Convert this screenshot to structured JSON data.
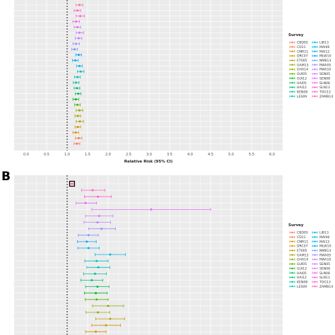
{
  "panel_labels": [
    "B"
  ],
  "legend": {
    "title": "Survey",
    "entries": [
      {
        "label": "CBD05",
        "color": "#F8766D"
      },
      {
        "label": "CD11",
        "color": "#EE8043"
      },
      {
        "label": "CMR11",
        "color": "#E08B00"
      },
      {
        "label": "DRC07",
        "color": "#CF9400"
      },
      {
        "label": "ET005",
        "color": "#BB9D00"
      },
      {
        "label": "GAM13",
        "color": "#A3A500"
      },
      {
        "label": "GHA14",
        "color": "#85AD00"
      },
      {
        "label": "GUI05",
        "color": "#5BB300"
      },
      {
        "label": "GUI12",
        "color": "#00B81F"
      },
      {
        "label": "HAI05",
        "color": "#00BC56"
      },
      {
        "label": "HAI12",
        "color": "#00BF7D"
      },
      {
        "label": "KEN08",
        "color": "#00C19C"
      },
      {
        "label": "LES09",
        "color": "#00C0B8"
      },
      {
        "label": "LIB13",
        "color": "#00BDD0"
      },
      {
        "label": "MAI06",
        "color": "#00B8E5"
      },
      {
        "label": "MAI12",
        "color": "#00B0F6"
      },
      {
        "label": "MLW10",
        "color": "#00A5FF"
      },
      {
        "label": "NMB13",
        "color": "#7997FF"
      },
      {
        "label": "RWA05",
        "color": "#9F8CFF"
      },
      {
        "label": "RWA10",
        "color": "#BB81FF"
      },
      {
        "label": "SEN05",
        "color": "#D078FF"
      },
      {
        "label": "SEN08",
        "color": "#E26EF7"
      },
      {
        "label": "SLN08",
        "color": "#EF67EA"
      },
      {
        "label": "SLN13",
        "color": "#F962D7"
      },
      {
        "label": "TOG13",
        "color": "#FF61C3"
      },
      {
        "label": "ZAMB14",
        "color": "#FF67AA"
      }
    ]
  },
  "chart_data": [
    {
      "type": "scatter",
      "subtype": "forest-plot",
      "xlabel": "Relative Risk (95% CI)",
      "ylabel": "",
      "xlim": [
        0,
        6
      ],
      "x_ticks": [
        "0.0",
        "0.5",
        "1.0",
        "1.5",
        "2.0",
        "2.5",
        "3.0",
        "3.5",
        "4.0",
        "4.5",
        "5.0",
        "5.5",
        "6.0"
      ],
      "reference_line": 1.0,
      "grid": true,
      "legend_position": "right",
      "series": [
        {
          "survey": "ZAMB14",
          "estimate": 1.3,
          "lower": 1.22,
          "upper": 1.38
        },
        {
          "survey": "TOG13",
          "estimate": 1.25,
          "lower": 1.17,
          "upper": 1.33
        },
        {
          "survey": "SLN13",
          "estimate": 1.32,
          "lower": 1.22,
          "upper": 1.42
        },
        {
          "survey": "SLN08",
          "estimate": 1.22,
          "lower": 1.14,
          "upper": 1.3
        },
        {
          "survey": "SEN08",
          "estimate": 1.25,
          "lower": 1.17,
          "upper": 1.33
        },
        {
          "survey": "SEN05",
          "estimate": 1.3,
          "lower": 1.22,
          "upper": 1.4
        },
        {
          "survey": "RWA10",
          "estimate": 1.28,
          "lower": 1.2,
          "upper": 1.36
        },
        {
          "survey": "RWA05",
          "estimate": 1.22,
          "lower": 1.14,
          "upper": 1.3
        },
        {
          "survey": "NMB13",
          "estimate": 1.18,
          "lower": 1.11,
          "upper": 1.25
        },
        {
          "survey": "MLW10",
          "estimate": 1.28,
          "lower": 1.21,
          "upper": 1.35
        },
        {
          "survey": "MAI12",
          "estimate": 1.2,
          "lower": 1.13,
          "upper": 1.27
        },
        {
          "survey": "MAI06",
          "estimate": 1.3,
          "lower": 1.23,
          "upper": 1.37
        },
        {
          "survey": "LIB13",
          "estimate": 1.33,
          "lower": 1.25,
          "upper": 1.41
        },
        {
          "survey": "LES09",
          "estimate": 1.25,
          "lower": 1.18,
          "upper": 1.32
        },
        {
          "survey": "KEN08",
          "estimate": 1.22,
          "lower": 1.15,
          "upper": 1.29
        },
        {
          "survey": "HAI12",
          "estimate": 1.24,
          "lower": 1.17,
          "upper": 1.31
        },
        {
          "survey": "HAI05",
          "estimate": 1.27,
          "lower": 1.2,
          "upper": 1.34
        },
        {
          "survey": "GUI12",
          "estimate": 1.21,
          "lower": 1.14,
          "upper": 1.28
        },
        {
          "survey": "GUI05",
          "estimate": 1.25,
          "lower": 1.18,
          "upper": 1.32
        },
        {
          "survey": "GHA14",
          "estimate": 1.3,
          "lower": 1.22,
          "upper": 1.38
        },
        {
          "survey": "GAM13",
          "estimate": 1.26,
          "lower": 1.19,
          "upper": 1.33
        },
        {
          "survey": "ET005",
          "estimate": 1.31,
          "lower": 1.22,
          "upper": 1.4
        },
        {
          "survey": "DRC07",
          "estimate": 1.26,
          "lower": 1.19,
          "upper": 1.33
        },
        {
          "survey": "CMR11",
          "estimate": 1.21,
          "lower": 1.14,
          "upper": 1.28
        },
        {
          "survey": "CD11",
          "estimate": 1.28,
          "lower": 1.2,
          "upper": 1.36
        },
        {
          "survey": "CBD05",
          "estimate": 1.24,
          "lower": 1.17,
          "upper": 1.31
        }
      ]
    },
    {
      "type": "scatter",
      "subtype": "forest-plot",
      "xlim": [
        0,
        6
      ],
      "reference_line": 1.0,
      "grid": true,
      "legend_position": "right",
      "series": [
        {
          "survey": "ZAMB14",
          "estimate": 1.12,
          "lower": 1.07,
          "upper": 1.17
        },
        {
          "survey": "TOG13",
          "estimate": 1.62,
          "lower": 1.35,
          "upper": 1.92
        },
        {
          "survey": "SLN13",
          "estimate": 1.75,
          "lower": 1.42,
          "upper": 2.08
        },
        {
          "survey": "SLN08",
          "estimate": 1.45,
          "lower": 1.22,
          "upper": 1.72
        },
        {
          "survey": "SEN08",
          "estimate": 3.05,
          "lower": 1.6,
          "upper": 4.5
        },
        {
          "survey": "SEN05",
          "estimate": 1.78,
          "lower": 1.45,
          "upper": 2.12
        },
        {
          "survey": "RWA10",
          "estimate": 1.74,
          "lower": 1.41,
          "upper": 2.06
        },
        {
          "survey": "RWA05",
          "estimate": 1.84,
          "lower": 1.52,
          "upper": 2.18
        },
        {
          "survey": "NMB13",
          "estimate": 1.52,
          "lower": 1.27,
          "upper": 1.76
        },
        {
          "survey": "MLW10",
          "estimate": 1.48,
          "lower": 1.25,
          "upper": 1.71
        },
        {
          "survey": "MAI12",
          "estimate": 1.52,
          "lower": 1.26,
          "upper": 1.78
        },
        {
          "survey": "MAI06",
          "estimate": 2.05,
          "lower": 1.68,
          "upper": 2.42
        },
        {
          "survey": "LIB13",
          "estimate": 1.72,
          "lower": 1.43,
          "upper": 2.0
        },
        {
          "survey": "LES09",
          "estimate": 1.76,
          "lower": 1.48,
          "upper": 2.04
        },
        {
          "survey": "KEN08",
          "estimate": 1.68,
          "lower": 1.4,
          "upper": 1.96
        },
        {
          "survey": "HAI12",
          "estimate": 1.6,
          "lower": 1.33,
          "upper": 1.87
        },
        {
          "survey": "HAI05",
          "estimate": 1.74,
          "lower": 1.45,
          "upper": 2.02
        },
        {
          "survey": "GUI12",
          "estimate": 1.7,
          "lower": 1.42,
          "upper": 1.98
        },
        {
          "survey": "GUI05",
          "estimate": 1.72,
          "lower": 1.44,
          "upper": 2.0
        },
        {
          "survey": "GHA14",
          "estimate": 2.0,
          "lower": 1.62,
          "upper": 2.38
        },
        {
          "survey": "GAM13",
          "estimate": 1.75,
          "lower": 1.46,
          "upper": 2.04
        },
        {
          "survey": "ET005",
          "estimate": 2.05,
          "lower": 1.7,
          "upper": 2.4
        },
        {
          "survey": "DRC07",
          "estimate": 1.95,
          "lower": 1.6,
          "upper": 2.3
        },
        {
          "survey": "CMR11",
          "estimate": 1.7,
          "lower": 1.45,
          "upper": 1.95
        },
        {
          "survey": "CD11",
          "estimate": 1.75,
          "lower": 1.47,
          "upper": 2.02
        },
        {
          "survey": "CBD05",
          "estimate": 1.7,
          "lower": 1.45,
          "upper": 1.95
        }
      ]
    }
  ]
}
